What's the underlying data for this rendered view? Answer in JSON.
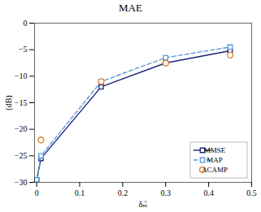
{
  "chart_data": {
    "type": "line",
    "title": "MAE",
    "xlabel": "δₘ̂",
    "ylabel": "(dB)",
    "xlim": [
      -0.005,
      0.5
    ],
    "ylim": [
      -30,
      0
    ],
    "xticks": [
      0,
      0.1,
      0.2,
      0.3,
      0.4,
      0.5
    ],
    "yticks": [
      0,
      {
        "value": -5,
        "label": "−5"
      },
      {
        "value": -10,
        "label": "−10"
      },
      {
        "value": -15,
        "label": "−15"
      },
      {
        "value": -20,
        "label": "−20"
      },
      {
        "value": -25,
        "label": "−25"
      },
      {
        "value": -30,
        "label": "−30"
      }
    ],
    "series": [
      {
        "name": "MMSE",
        "color": "#1a237e",
        "marker": "square",
        "line_style": "solid",
        "x": [
          0.0,
          0.01,
          0.15,
          0.3,
          0.45
        ],
        "values": [
          -29.5,
          -25.5,
          -12.0,
          -7.5,
          -5.2
        ]
      },
      {
        "name": "MAP",
        "color": "#5b9bd5",
        "marker": "square",
        "line_style": "dashed",
        "x": [
          0.0,
          0.01,
          0.15,
          0.3,
          0.45
        ],
        "values": [
          -29.5,
          -25.0,
          -11.0,
          -6.5,
          -4.5
        ]
      },
      {
        "name": "ACAMP",
        "color": "#e07b20",
        "marker": "circle",
        "line_style": "none",
        "x": [
          0.01,
          0.15,
          0.3,
          0.45
        ],
        "values": [
          -22.0,
          -11.0,
          -7.5,
          -6.0
        ]
      }
    ],
    "grid": false,
    "legend": "lower right"
  }
}
